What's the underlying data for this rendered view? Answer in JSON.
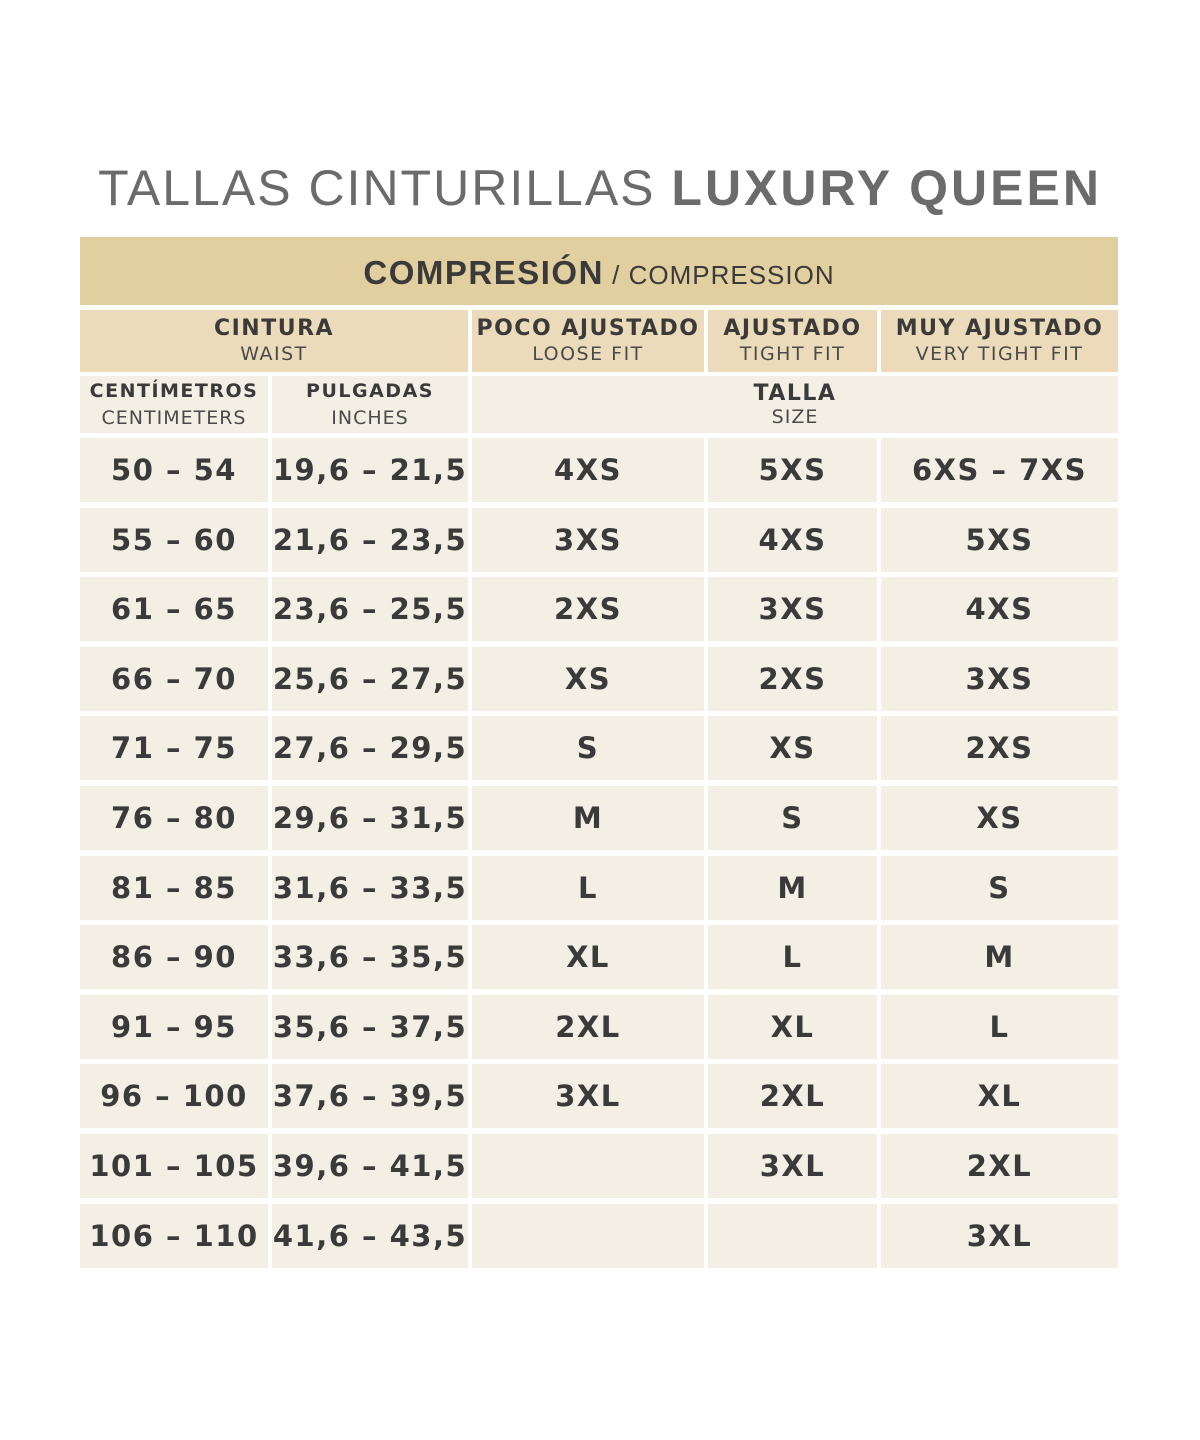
{
  "title": {
    "light": "TALLAS CINTURILLAS ",
    "bold": "LUXURY QUEEN"
  },
  "band": {
    "main": "COMPRESIÓN",
    "sub": " / COMPRESSION"
  },
  "colors": {
    "band": "#e2cfa0",
    "header": "#ecdbba",
    "body": "#f4efe4",
    "text": "#3a3a3a",
    "title": "#6b6b6b"
  },
  "headers": {
    "waist": {
      "main": "CINTURA",
      "sub": "WAIST"
    },
    "loose": {
      "main": "POCO AJUSTADO",
      "sub": "LOOSE FIT"
    },
    "tight": {
      "main": "AJUSTADO",
      "sub": "TIGHT FIT"
    },
    "very_tight": {
      "main": "MUY AJUSTADO",
      "sub": "VERY TIGHT FIT"
    },
    "cm": {
      "main": "CENTÍMETROS",
      "sub": "CENTIMETERS"
    },
    "inches": {
      "main": "PULGADAS",
      "sub": "INCHES"
    },
    "size": {
      "main": "TALLA",
      "sub": "SIZE"
    }
  },
  "rows": [
    {
      "cm": "50 – 54",
      "in": "19,6 – 21,5",
      "loose": "4XS",
      "tight": "5XS",
      "very_tight": "6XS – 7XS"
    },
    {
      "cm": "55 – 60",
      "in": "21,6 – 23,5",
      "loose": "3XS",
      "tight": "4XS",
      "very_tight": "5XS"
    },
    {
      "cm": "61 – 65",
      "in": "23,6 – 25,5",
      "loose": "2XS",
      "tight": "3XS",
      "very_tight": "4XS"
    },
    {
      "cm": "66 – 70",
      "in": "25,6 – 27,5",
      "loose": "XS",
      "tight": "2XS",
      "very_tight": "3XS"
    },
    {
      "cm": "71 – 75",
      "in": "27,6 – 29,5",
      "loose": "S",
      "tight": "XS",
      "very_tight": "2XS"
    },
    {
      "cm": "76 – 80",
      "in": "29,6 – 31,5",
      "loose": "M",
      "tight": "S",
      "very_tight": "XS"
    },
    {
      "cm": "81 – 85",
      "in": "31,6 – 33,5",
      "loose": "L",
      "tight": "M",
      "very_tight": "S"
    },
    {
      "cm": "86 – 90",
      "in": "33,6 – 35,5",
      "loose": "XL",
      "tight": "L",
      "very_tight": "M"
    },
    {
      "cm": "91 – 95",
      "in": "35,6 – 37,5",
      "loose": "2XL",
      "tight": "XL",
      "very_tight": "L"
    },
    {
      "cm": "96 – 100",
      "in": "37,6 – 39,5",
      "loose": "3XL",
      "tight": "2XL",
      "very_tight": "XL"
    },
    {
      "cm": "101 – 105",
      "in": "39,6 – 41,5",
      "loose": "",
      "tight": "3XL",
      "very_tight": "2XL"
    },
    {
      "cm": "106 – 110",
      "in": "41,6 – 43,5",
      "loose": "",
      "tight": "",
      "very_tight": "3XL"
    }
  ]
}
